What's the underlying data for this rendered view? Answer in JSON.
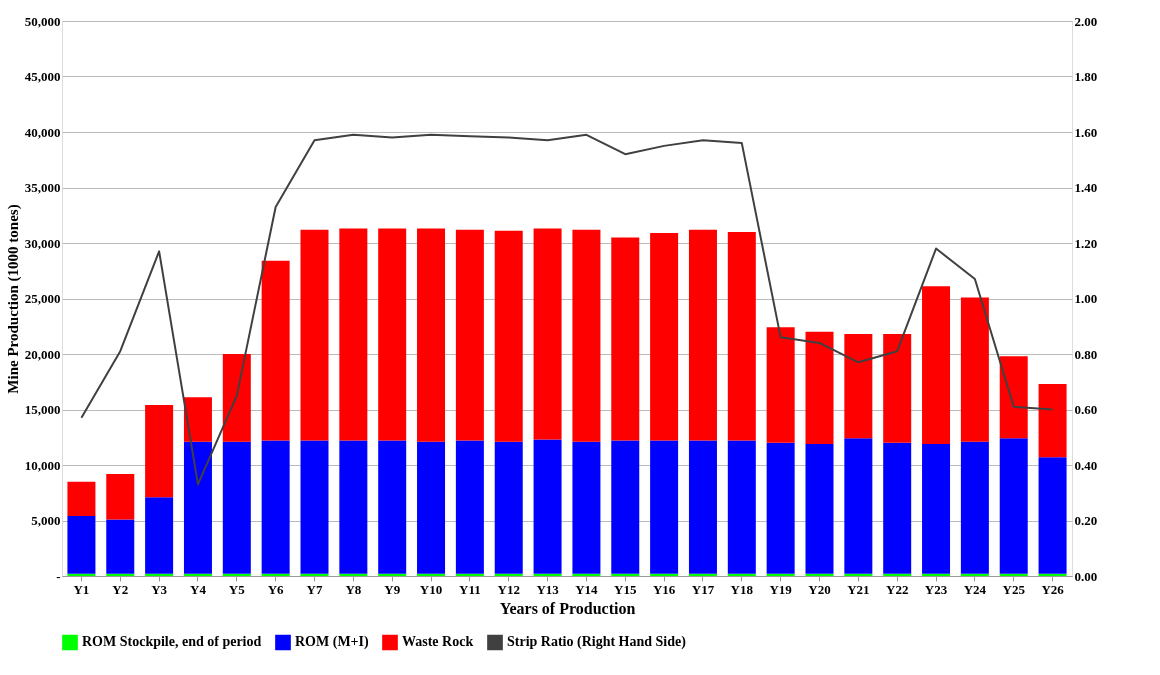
{
  "chart_data": {
    "type": "bar",
    "stacked": true,
    "xlabel": "Years of Production",
    "ylabel": "Mine Production (1000 tones)",
    "categories": [
      "Y1",
      "Y2",
      "Y3",
      "Y4",
      "Y5",
      "Y6",
      "Y7",
      "Y8",
      "Y9",
      "Y10",
      "Y11",
      "Y12",
      "Y13",
      "Y14",
      "Y15",
      "Y16",
      "Y17",
      "Y18",
      "Y19",
      "Y20",
      "Y21",
      "Y22",
      "Y23",
      "Y24",
      "Y25",
      "Y26"
    ],
    "series": [
      {
        "name": "ROM Stockpile, end of period",
        "color": "#00ff00",
        "values": [
          200,
          200,
          200,
          200,
          200,
          200,
          200,
          200,
          200,
          200,
          200,
          200,
          200,
          200,
          200,
          200,
          200,
          200,
          200,
          200,
          200,
          200,
          200,
          200,
          200,
          200
        ]
      },
      {
        "name": "ROM (M+I)",
        "color": "#0000ff",
        "values": [
          5200,
          4900,
          6900,
          11900,
          11900,
          12000,
          12000,
          12000,
          12000,
          11900,
          12000,
          11900,
          12100,
          11900,
          12000,
          12000,
          12000,
          12000,
          11800,
          11700,
          12200,
          11800,
          11700,
          11900,
          12200,
          10500
        ]
      },
      {
        "name": "Waste Rock",
        "color": "#ff0000",
        "values": [
          3100,
          4100,
          8300,
          4000,
          7900,
          16200,
          19000,
          19100,
          19100,
          19200,
          19000,
          19000,
          19000,
          19100,
          18300,
          18700,
          19000,
          18800,
          10400,
          10100,
          9400,
          9800,
          14200,
          13000,
          7400,
          6600
        ]
      },
      {
        "name": "Strip Ratio (Right Hand Side)",
        "color": "#404040",
        "type": "line",
        "axis": "y2",
        "values": [
          0.57,
          0.81,
          1.17,
          0.33,
          0.65,
          1.33,
          1.57,
          1.59,
          1.58,
          1.59,
          1.585,
          1.58,
          1.57,
          1.59,
          1.52,
          1.55,
          1.57,
          1.56,
          0.86,
          0.84,
          0.77,
          0.81,
          1.18,
          1.07,
          0.61,
          0.6
        ]
      }
    ],
    "ylim": [
      0,
      50000
    ],
    "yticks": [
      {
        "value": 0,
        "label": "-"
      },
      {
        "value": 5000,
        "label": "5,000"
      },
      {
        "value": 10000,
        "label": "10,000"
      },
      {
        "value": 15000,
        "label": "15,000"
      },
      {
        "value": 20000,
        "label": "20,000"
      },
      {
        "value": 25000,
        "label": "25,000"
      },
      {
        "value": 30000,
        "label": "30,000"
      },
      {
        "value": 35000,
        "label": "35,000"
      },
      {
        "value": 40000,
        "label": "40,000"
      },
      {
        "value": 45000,
        "label": "45,000"
      },
      {
        "value": 50000,
        "label": "50,000"
      }
    ],
    "y2lim": [
      0,
      2
    ],
    "y2ticks": [
      {
        "value": 0,
        "label": "0.00"
      },
      {
        "value": 0.2,
        "label": "0.20"
      },
      {
        "value": 0.4,
        "label": "0.40"
      },
      {
        "value": 0.6,
        "label": "0.60"
      },
      {
        "value": 0.8,
        "label": "0.80"
      },
      {
        "value": 1.0,
        "label": "1.00"
      },
      {
        "value": 1.2,
        "label": "1.20"
      },
      {
        "value": 1.4,
        "label": "1.40"
      },
      {
        "value": 1.6,
        "label": "1.60"
      },
      {
        "value": 1.8,
        "label": "1.80"
      },
      {
        "value": 2.0,
        "label": "2.00"
      }
    ],
    "grid": "y",
    "legend": "bottom",
    "marker": "none",
    "line_style": "solid"
  }
}
